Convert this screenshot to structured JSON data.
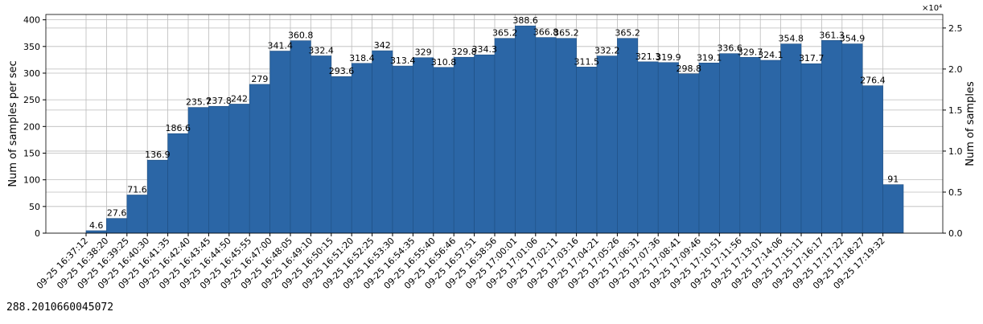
{
  "chart_data": {
    "type": "bar",
    "categories": [
      "09-25 16:37:12",
      "09-25 16:38:20",
      "09-25 16:39:25",
      "09-25 16:40:30",
      "09-25 16:41:35",
      "09-25 16:42:40",
      "09-25 16:43:45",
      "09-25 16:44:50",
      "09-25 16:45:55",
      "09-25 16:47:00",
      "09-25 16:48:05",
      "09-25 16:49:10",
      "09-25 16:50:15",
      "09-25 16:51:20",
      "09-25 16:52:25",
      "09-25 16:53:30",
      "09-25 16:54:35",
      "09-25 16:55:40",
      "09-25 16:56:46",
      "09-25 16:57:51",
      "09-25 16:58:56",
      "09-25 17:00:01",
      "09-25 17:01:06",
      "09-25 17:02:11",
      "09-25 17:03:16",
      "09-25 17:04:21",
      "09-25 17:05:26",
      "09-25 17:06:31",
      "09-25 17:07:36",
      "09-25 17:08:41",
      "09-25 17:09:46",
      "09-25 17:10:51",
      "09-25 17:11:56",
      "09-25 17:13:01",
      "09-25 17:14:06",
      "09-25 17:15:11",
      "09-25 17:16:17",
      "09-25 17:17:22",
      "09-25 17:18:27",
      "09-25 17:19:32"
    ],
    "values": [
      4.6,
      27.6,
      71.6,
      136.9,
      186.6,
      235.7,
      237.8,
      242,
      279,
      341.4,
      360.8,
      332.4,
      293.6,
      318.4,
      342,
      313.4,
      329,
      310.8,
      329.8,
      334.3,
      365.2,
      388.6,
      366.8,
      365.2,
      311.5,
      332.2,
      365.2,
      321.3,
      319.9,
      298.8,
      319.1,
      336.6,
      329.7,
      324.1,
      354.8,
      317.7,
      361.3,
      354.9,
      276.4,
      91
    ],
    "color": "#2b66a6",
    "ylabel": "Num of samples per sec",
    "y2label": "Num of samples",
    "ylim": [
      0,
      410
    ],
    "yticks": [
      0,
      50,
      100,
      150,
      200,
      250,
      300,
      350,
      400
    ],
    "y2lim": [
      0,
      26650
    ],
    "y2ticks": [
      {
        "value": 0,
        "label": "0.0"
      },
      {
        "value": 5000,
        "label": "0.5"
      },
      {
        "value": 10000,
        "label": "1.0"
      },
      {
        "value": 15000,
        "label": "1.5"
      },
      {
        "value": 20000,
        "label": "2.0"
      },
      {
        "value": 25000,
        "label": "2.5"
      }
    ],
    "y2_offset_label": "×10⁴",
    "grid": true
  },
  "output_text": "288.2010660045072"
}
